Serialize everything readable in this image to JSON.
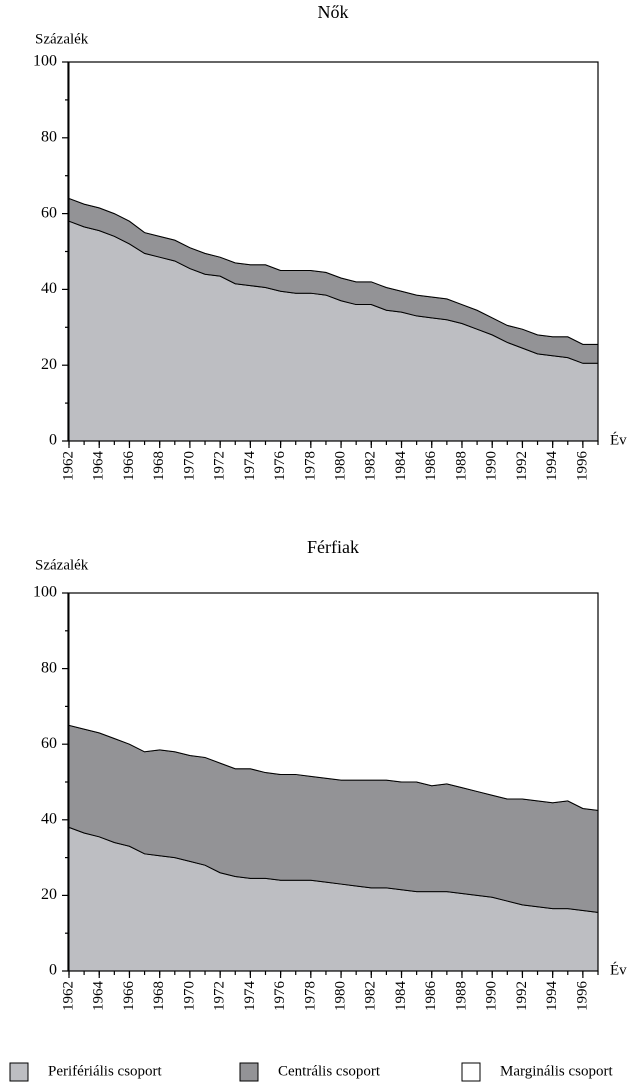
{
  "chart_data": [
    {
      "type": "area",
      "stacked": true,
      "title": "Nők",
      "y_label": "Százalék",
      "x_label": "Év",
      "x": [
        1962,
        1963,
        1964,
        1965,
        1966,
        1967,
        1968,
        1969,
        1970,
        1971,
        1972,
        1973,
        1974,
        1975,
        1976,
        1977,
        1978,
        1979,
        1980,
        1981,
        1982,
        1983,
        1984,
        1985,
        1986,
        1987,
        1988,
        1989,
        1990,
        1991,
        1992,
        1993,
        1994,
        1995,
        1996,
        1997
      ],
      "xlim": [
        1962,
        1997
      ],
      "xticks": [
        1962,
        1964,
        1966,
        1968,
        1970,
        1972,
        1974,
        1976,
        1978,
        1980,
        1982,
        1984,
        1986,
        1988,
        1990,
        1992,
        1994,
        1996
      ],
      "ylim": [
        0,
        100
      ],
      "yticks": [
        0,
        20,
        40,
        60,
        80,
        100
      ],
      "series": [
        {
          "name": "Perifériális csoport",
          "color": "#bdbec2",
          "values": [
            58,
            56.5,
            55.5,
            54,
            52,
            49.5,
            48.5,
            47.5,
            45.5,
            44,
            43.5,
            41.5,
            41,
            40.5,
            39.5,
            39,
            39,
            38.5,
            37,
            36,
            36,
            34.5,
            34,
            33,
            32.5,
            32,
            31,
            29.5,
            28,
            26,
            24.5,
            23,
            22.5,
            22,
            20.5,
            20.5
          ]
        },
        {
          "name": "Centrális csoport",
          "color": "#939396",
          "values": [
            6,
            6,
            6,
            6,
            6,
            5.5,
            5.5,
            5.5,
            5.5,
            5.5,
            5,
            5.5,
            5.5,
            6,
            5.5,
            6,
            6,
            6,
            6,
            6,
            6,
            6,
            5.5,
            5.5,
            5.5,
            5.5,
            5,
            5,
            4.5,
            4.5,
            5,
            5,
            5,
            5.5,
            5,
            5
          ]
        },
        {
          "name": "Marginális csoport",
          "color": "#ffffff",
          "values": [
            36,
            37.5,
            38.5,
            40,
            42,
            45,
            46,
            47,
            49,
            50.5,
            51.5,
            53,
            53.5,
            53.5,
            55,
            55,
            55,
            55.5,
            57,
            58,
            58,
            59.5,
            60.5,
            61.5,
            62,
            62.5,
            64,
            65.5,
            67.5,
            69.5,
            70.5,
            72,
            72.5,
            72.5,
            74.5,
            74.5
          ]
        }
      ]
    },
    {
      "type": "area",
      "stacked": true,
      "title": "Férfiak",
      "y_label": "Százalék",
      "x_label": "Év",
      "x": [
        1962,
        1963,
        1964,
        1965,
        1966,
        1967,
        1968,
        1969,
        1970,
        1971,
        1972,
        1973,
        1974,
        1975,
        1976,
        1977,
        1978,
        1979,
        1980,
        1981,
        1982,
        1983,
        1984,
        1985,
        1986,
        1987,
        1988,
        1989,
        1990,
        1991,
        1992,
        1993,
        1994,
        1995,
        1996,
        1997
      ],
      "xlim": [
        1962,
        1997
      ],
      "xticks": [
        1962,
        1964,
        1966,
        1968,
        1970,
        1972,
        1974,
        1976,
        1978,
        1980,
        1982,
        1984,
        1986,
        1988,
        1990,
        1992,
        1994,
        1996
      ],
      "ylim": [
        0,
        100
      ],
      "yticks": [
        0,
        20,
        40,
        60,
        80,
        100
      ],
      "series": [
        {
          "color": "#bdbec2",
          "values": [
            38,
            36.5,
            35.5,
            34,
            33,
            31,
            30.5,
            30,
            29,
            28,
            26,
            25,
            24.5,
            24.5,
            24,
            24,
            24,
            23.5,
            23,
            22.5,
            22,
            22,
            21.5,
            21,
            21,
            21,
            20.5,
            20,
            19.5,
            18.5,
            17.5,
            17,
            16.5,
            16.5,
            16,
            15.5
          ]
        },
        {
          "color": "#939396",
          "values": [
            27,
            27.5,
            27.5,
            27.5,
            27,
            27,
            28,
            28,
            28,
            28.5,
            29,
            28.5,
            29,
            28,
            28,
            28,
            27.5,
            27.5,
            27.5,
            28,
            28.5,
            28.5,
            28.5,
            29,
            28,
            28.5,
            28,
            27.5,
            27,
            27,
            28,
            28,
            28,
            28.5,
            27,
            27
          ]
        },
        {
          "color": "#ffffff",
          "values": [
            35,
            36,
            37,
            38.5,
            40,
            42,
            41.5,
            42,
            43,
            43.5,
            45,
            46.5,
            46.5,
            47.5,
            48,
            48,
            48.5,
            49,
            49.5,
            49.5,
            49.5,
            49.5,
            50,
            50,
            51,
            50.5,
            51.5,
            52.5,
            53.5,
            54.5,
            54.5,
            55,
            55.5,
            55,
            57,
            57.5
          ]
        }
      ]
    }
  ]
}
